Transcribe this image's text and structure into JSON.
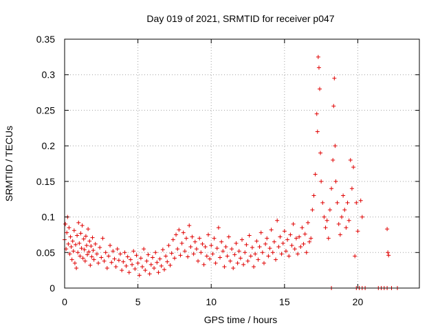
{
  "chart_data": {
    "type": "scatter",
    "title": "Day 019 of 2021, SRMTID for receiver p047",
    "xlabel": "GPS time / hours",
    "ylabel": "SRMTID / TECUs",
    "xlim": [
      0,
      24.2
    ],
    "ylim": [
      0,
      0.35
    ],
    "xticks": [
      0,
      5,
      10,
      15,
      20
    ],
    "xtick_labels": [
      "0",
      "5",
      "10",
      "15",
      "20"
    ],
    "yticks": [
      0,
      0.05,
      0.1,
      0.15,
      0.2,
      0.25,
      0.3,
      0.35
    ],
    "ytick_labels": [
      "0",
      "0.05",
      "0.1",
      "0.15",
      "0.2",
      "0.25",
      "0.3",
      "0.35"
    ],
    "grid": true,
    "marker": "+",
    "series": [
      {
        "name": "SRMTID",
        "color": "#e00000",
        "points": [
          [
            0.0,
            0.068
          ],
          [
            0.05,
            0.09
          ],
          [
            0.1,
            0.055
          ],
          [
            0.15,
            0.078
          ],
          [
            0.2,
            0.1
          ],
          [
            0.25,
            0.062
          ],
          [
            0.3,
            0.085
          ],
          [
            0.35,
            0.048
          ],
          [
            0.4,
            0.072
          ],
          [
            0.45,
            0.058
          ],
          [
            0.5,
            0.04
          ],
          [
            0.55,
            0.066
          ],
          [
            0.6,
            0.052
          ],
          [
            0.65,
            0.081
          ],
          [
            0.7,
            0.035
          ],
          [
            0.75,
            0.061
          ],
          [
            0.8,
            0.028
          ],
          [
            0.85,
            0.074
          ],
          [
            0.9,
            0.05
          ],
          [
            0.95,
            0.092
          ],
          [
            1.0,
            0.063
          ],
          [
            1.05,
            0.045
          ],
          [
            1.1,
            0.077
          ],
          [
            1.15,
            0.056
          ],
          [
            1.2,
            0.088
          ],
          [
            1.25,
            0.042
          ],
          [
            1.3,
            0.069
          ],
          [
            1.35,
            0.054
          ],
          [
            1.4,
            0.038
          ],
          [
            1.45,
            0.073
          ],
          [
            1.5,
            0.06
          ],
          [
            1.55,
            0.047
          ],
          [
            1.6,
            0.083
          ],
          [
            1.65,
            0.051
          ],
          [
            1.7,
            0.066
          ],
          [
            1.75,
            0.032
          ],
          [
            1.8,
            0.059
          ],
          [
            1.85,
            0.044
          ],
          [
            1.9,
            0.071
          ],
          [
            1.95,
            0.053
          ],
          [
            2.0,
            0.04
          ],
          [
            2.1,
            0.062
          ],
          [
            2.2,
            0.048
          ],
          [
            2.3,
            0.035
          ],
          [
            2.4,
            0.057
          ],
          [
            2.5,
            0.043
          ],
          [
            2.6,
            0.07
          ],
          [
            2.7,
            0.038
          ],
          [
            2.8,
            0.05
          ],
          [
            2.9,
            0.028
          ],
          [
            3.0,
            0.045
          ],
          [
            3.1,
            0.06
          ],
          [
            3.2,
            0.036
          ],
          [
            3.3,
            0.052
          ],
          [
            3.4,
            0.041
          ],
          [
            3.5,
            0.03
          ],
          [
            3.6,
            0.055
          ],
          [
            3.7,
            0.039
          ],
          [
            3.8,
            0.048
          ],
          [
            3.9,
            0.025
          ],
          [
            4.0,
            0.037
          ],
          [
            4.1,
            0.05
          ],
          [
            4.2,
            0.031
          ],
          [
            4.3,
            0.044
          ],
          [
            4.4,
            0.022
          ],
          [
            4.5,
            0.04
          ],
          [
            4.6,
            0.033
          ],
          [
            4.7,
            0.052
          ],
          [
            4.8,
            0.027
          ],
          [
            4.9,
            0.046
          ],
          [
            5.0,
            0.035
          ],
          [
            5.1,
            0.018
          ],
          [
            5.2,
            0.042
          ],
          [
            5.3,
            0.03
          ],
          [
            5.4,
            0.055
          ],
          [
            5.5,
            0.025
          ],
          [
            5.6,
            0.038
          ],
          [
            5.7,
            0.047
          ],
          [
            5.8,
            0.02
          ],
          [
            5.9,
            0.033
          ],
          [
            6.0,
            0.043
          ],
          [
            6.1,
            0.028
          ],
          [
            6.2,
            0.05
          ],
          [
            6.3,
            0.036
          ],
          [
            6.4,
            0.022
          ],
          [
            6.5,
            0.041
          ],
          [
            6.6,
            0.031
          ],
          [
            6.7,
            0.054
          ],
          [
            6.8,
            0.026
          ],
          [
            6.9,
            0.045
          ],
          [
            7.0,
            0.037
          ],
          [
            7.1,
            0.06
          ],
          [
            7.2,
            0.032
          ],
          [
            7.3,
            0.049
          ],
          [
            7.4,
            0.068
          ],
          [
            7.5,
            0.042
          ],
          [
            7.6,
            0.075
          ],
          [
            7.7,
            0.055
          ],
          [
            7.8,
            0.082
          ],
          [
            7.9,
            0.046
          ],
          [
            8.0,
            0.063
          ],
          [
            8.1,
            0.078
          ],
          [
            8.2,
            0.052
          ],
          [
            8.3,
            0.07
          ],
          [
            8.4,
            0.044
          ],
          [
            8.5,
            0.088
          ],
          [
            8.6,
            0.058
          ],
          [
            8.7,
            0.072
          ],
          [
            8.8,
            0.048
          ],
          [
            8.9,
            0.065
          ],
          [
            9.0,
            0.055
          ],
          [
            9.1,
            0.038
          ],
          [
            9.2,
            0.07
          ],
          [
            9.3,
            0.05
          ],
          [
            9.4,
            0.062
          ],
          [
            9.5,
            0.033
          ],
          [
            9.6,
            0.058
          ],
          [
            9.7,
            0.045
          ],
          [
            9.8,
            0.075
          ],
          [
            9.9,
            0.041
          ],
          [
            10.0,
            0.06
          ],
          [
            10.1,
            0.048
          ],
          [
            10.2,
            0.07
          ],
          [
            10.3,
            0.035
          ],
          [
            10.4,
            0.056
          ],
          [
            10.5,
            0.085
          ],
          [
            10.6,
            0.043
          ],
          [
            10.7,
            0.065
          ],
          [
            10.8,
            0.052
          ],
          [
            10.9,
            0.03
          ],
          [
            11.0,
            0.058
          ],
          [
            11.1,
            0.045
          ],
          [
            11.2,
            0.072
          ],
          [
            11.3,
            0.038
          ],
          [
            11.4,
            0.055
          ],
          [
            11.5,
            0.028
          ],
          [
            11.6,
            0.047
          ],
          [
            11.7,
            0.063
          ],
          [
            11.8,
            0.035
          ],
          [
            11.9,
            0.052
          ],
          [
            12.0,
            0.042
          ],
          [
            12.1,
            0.068
          ],
          [
            12.2,
            0.033
          ],
          [
            12.3,
            0.05
          ],
          [
            12.4,
            0.061
          ],
          [
            12.5,
            0.038
          ],
          [
            12.6,
            0.074
          ],
          [
            12.7,
            0.045
          ],
          [
            12.8,
            0.057
          ],
          [
            12.9,
            0.03
          ],
          [
            13.0,
            0.048
          ],
          [
            13.1,
            0.066
          ],
          [
            13.2,
            0.04
          ],
          [
            13.3,
            0.058
          ],
          [
            13.4,
            0.078
          ],
          [
            13.5,
            0.05
          ],
          [
            13.6,
            0.035
          ],
          [
            13.7,
            0.062
          ],
          [
            13.8,
            0.07
          ],
          [
            13.9,
            0.045
          ],
          [
            14.0,
            0.056
          ],
          [
            14.1,
            0.082
          ],
          [
            14.2,
            0.05
          ],
          [
            14.3,
            0.065
          ],
          [
            14.4,
            0.04
          ],
          [
            14.5,
            0.095
          ],
          [
            14.6,
            0.058
          ],
          [
            14.7,
            0.072
          ],
          [
            14.8,
            0.048
          ],
          [
            14.9,
            0.063
          ],
          [
            15.0,
            0.08
          ],
          [
            15.1,
            0.052
          ],
          [
            15.2,
            0.068
          ],
          [
            15.3,
            0.045
          ],
          [
            15.4,
            0.075
          ],
          [
            15.5,
            0.06
          ],
          [
            15.6,
            0.09
          ],
          [
            15.7,
            0.055
          ],
          [
            15.8,
            0.07
          ],
          [
            15.9,
            0.048
          ],
          [
            16.0,
            0.072
          ],
          [
            16.1,
            0.058
          ],
          [
            16.2,
            0.085
          ],
          [
            16.3,
            0.062
          ],
          [
            16.4,
            0.076
          ],
          [
            16.5,
            0.05
          ],
          [
            16.6,
            0.092
          ],
          [
            16.7,
            0.065
          ],
          [
            16.8,
            0.07
          ],
          [
            16.9,
            0.11
          ],
          [
            17.0,
            0.13
          ],
          [
            17.1,
            0.16
          ],
          [
            17.2,
            0.245
          ],
          [
            17.25,
            0.22
          ],
          [
            17.3,
            0.325
          ],
          [
            17.35,
            0.31
          ],
          [
            17.4,
            0.28
          ],
          [
            17.45,
            0.19
          ],
          [
            17.5,
            0.15
          ],
          [
            17.6,
            0.12
          ],
          [
            17.7,
            0.1
          ],
          [
            17.8,
            0.085
          ],
          [
            17.9,
            0.095
          ],
          [
            18.0,
            0.07
          ],
          [
            18.1,
            0.11
          ],
          [
            18.2,
            0.14
          ],
          [
            18.3,
            0.18
          ],
          [
            18.35,
            0.256
          ],
          [
            18.4,
            0.295
          ],
          [
            18.45,
            0.2
          ],
          [
            18.5,
            0.15
          ],
          [
            18.6,
            0.12
          ],
          [
            18.7,
            0.09
          ],
          [
            18.8,
            0.075
          ],
          [
            18.9,
            0.1
          ],
          [
            19.0,
            0.13
          ],
          [
            19.1,
            0.11
          ],
          [
            19.2,
            0.085
          ],
          [
            19.3,
            0.12
          ],
          [
            19.4,
            0.095
          ],
          [
            19.5,
            0.18
          ],
          [
            19.6,
            0.14
          ],
          [
            19.7,
            0.17
          ],
          [
            19.8,
            0.045
          ],
          [
            19.9,
            0.12
          ],
          [
            20.0,
            0.08
          ],
          [
            20.2,
            0.123
          ],
          [
            20.3,
            0.1
          ],
          [
            22.0,
            0.083
          ],
          [
            22.05,
            0.05
          ],
          [
            22.1,
            0.046
          ],
          [
            18.2,
            0.0
          ],
          [
            19.9,
            0.0
          ],
          [
            20.1,
            0.0
          ],
          [
            20.3,
            0.0
          ],
          [
            20.5,
            0.0
          ],
          [
            21.4,
            0.0
          ],
          [
            21.6,
            0.0
          ],
          [
            21.8,
            0.0
          ],
          [
            22.0,
            0.0
          ],
          [
            22.3,
            0.0
          ],
          [
            22.7,
            0.0
          ]
        ]
      }
    ]
  }
}
